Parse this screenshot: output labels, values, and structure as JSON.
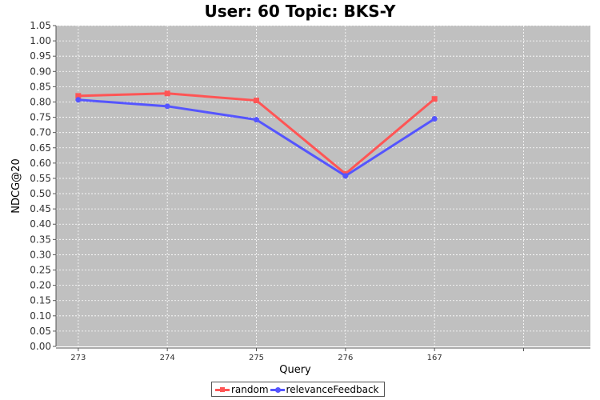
{
  "chart_data": {
    "type": "line",
    "title": "User: 60 Topic: BKS-Y",
    "xlabel": "Query",
    "ylabel": "NDCG@20",
    "categories": [
      "273",
      "274",
      "275",
      "276",
      "167"
    ],
    "ylim": [
      0.0,
      1.05
    ],
    "yticks": [
      "0.00",
      "0.05",
      "0.10",
      "0.15",
      "0.20",
      "0.25",
      "0.30",
      "0.35",
      "0.40",
      "0.45",
      "0.50",
      "0.55",
      "0.60",
      "0.65",
      "0.70",
      "0.75",
      "0.80",
      "0.85",
      "0.90",
      "0.95",
      "1.00",
      "1.05"
    ],
    "grid": true,
    "legend_position": "bottom",
    "series": [
      {
        "name": "random",
        "color": "#ff5555",
        "marker": "square",
        "values": [
          0.82,
          0.828,
          0.805,
          0.565,
          0.81
        ]
      },
      {
        "name": "relevanceFeedback",
        "color": "#5555ff",
        "marker": "circle",
        "values": [
          0.807,
          0.786,
          0.742,
          0.558,
          0.745
        ]
      }
    ]
  },
  "colors": {
    "plot_background": "#c0c0c0",
    "grid": "#ffffff"
  }
}
